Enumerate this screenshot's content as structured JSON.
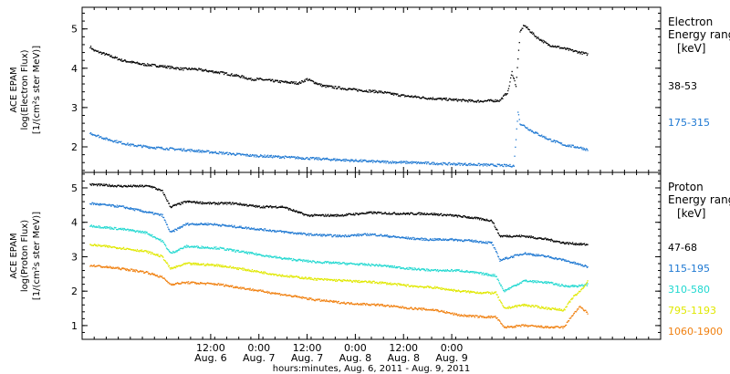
{
  "chart_data": [
    {
      "type": "scatter",
      "panel": "electron",
      "ylabel": [
        "ACE EPAM",
        "log(Electron Flux)",
        "[1/(cm²s ster MeV)]"
      ],
      "yticks": [
        "2",
        "3",
        "4",
        "5"
      ],
      "ylim": [
        1.35,
        5.55
      ],
      "legend_title": [
        "Electron",
        "Energy ranges",
        "[keV]"
      ],
      "series": [
        {
          "name": "38-53",
          "color": "#000000",
          "points": [
            [
              -18,
              4.55
            ],
            [
              -17,
              4.45
            ],
            [
              -14,
              4.35
            ],
            [
              -10,
              4.2
            ],
            [
              -5,
              4.1
            ],
            [
              0,
              4.05
            ],
            [
              5,
              3.98
            ],
            [
              8,
              3.98
            ],
            [
              10,
              3.95
            ],
            [
              15,
              3.88
            ],
            [
              20,
              3.78
            ],
            [
              22,
              3.72
            ],
            [
              24,
              3.72
            ],
            [
              30,
              3.65
            ],
            [
              34,
              3.62
            ],
            [
              36,
              3.72
            ],
            [
              40,
              3.55
            ],
            [
              48,
              3.45
            ],
            [
              54,
              3.4
            ],
            [
              60,
              3.3
            ],
            [
              66,
              3.24
            ],
            [
              72,
              3.2
            ],
            [
              78,
              3.16
            ],
            [
              84,
              3.18
            ],
            [
              86,
              3.4
            ],
            [
              87,
              3.9
            ],
            [
              88,
              3.55
            ],
            [
              89,
              4.9
            ],
            [
              90,
              5.1
            ],
            [
              93,
              4.8
            ],
            [
              96,
              4.6
            ],
            [
              100,
              4.5
            ],
            [
              104,
              4.4
            ],
            [
              106,
              4.35
            ]
          ]
        },
        {
          "name": "175-315",
          "color": "#1e78d2",
          "points": [
            [
              -18,
              2.35
            ],
            [
              -14,
              2.2
            ],
            [
              -8,
              2.05
            ],
            [
              -2,
              1.98
            ],
            [
              6,
              1.92
            ],
            [
              14,
              1.85
            ],
            [
              22,
              1.78
            ],
            [
              30,
              1.74
            ],
            [
              38,
              1.7
            ],
            [
              46,
              1.66
            ],
            [
              54,
              1.62
            ],
            [
              62,
              1.6
            ],
            [
              70,
              1.57
            ],
            [
              78,
              1.55
            ],
            [
              86,
              1.52
            ],
            [
              87.5,
              1.52
            ],
            [
              88.5,
              2.9
            ],
            [
              89,
              2.6
            ],
            [
              92,
              2.4
            ],
            [
              96,
              2.2
            ],
            [
              100,
              2.05
            ],
            [
              104,
              1.98
            ],
            [
              106,
              1.92
            ]
          ]
        }
      ]
    },
    {
      "type": "scatter",
      "panel": "proton",
      "ylabel": [
        "ACE EPAM",
        "log(Proton Flux)",
        "[1/(cm²s ster MeV)]"
      ],
      "yticks": [
        "1",
        "2",
        "3",
        "4",
        "5"
      ],
      "ylim": [
        0.6,
        5.45
      ],
      "legend_title": [
        "Proton",
        "Energy ranges",
        "[keV]"
      ],
      "series": [
        {
          "name": "47-68",
          "color": "#000000",
          "points": [
            [
              -18,
              5.1
            ],
            [
              -10,
              5.05
            ],
            [
              -3,
              5.05
            ],
            [
              0,
              4.9
            ],
            [
              2,
              4.45
            ],
            [
              6,
              4.6
            ],
            [
              12,
              4.55
            ],
            [
              18,
              4.55
            ],
            [
              24,
              4.45
            ],
            [
              30,
              4.45
            ],
            [
              36,
              4.2
            ],
            [
              44,
              4.2
            ],
            [
              52,
              4.28
            ],
            [
              60,
              4.25
            ],
            [
              66,
              4.25
            ],
            [
              72,
              4.2
            ],
            [
              76,
              4.15
            ],
            [
              82,
              4.05
            ],
            [
              84,
              3.6
            ],
            [
              90,
              3.6
            ],
            [
              96,
              3.5
            ],
            [
              100,
              3.4
            ],
            [
              106,
              3.35
            ]
          ]
        },
        {
          "name": "115-195",
          "color": "#1e78d2",
          "points": [
            [
              -18,
              4.55
            ],
            [
              -10,
              4.45
            ],
            [
              -4,
              4.3
            ],
            [
              0,
              4.2
            ],
            [
              2,
              3.7
            ],
            [
              6,
              3.95
            ],
            [
              12,
              3.95
            ],
            [
              20,
              3.85
            ],
            [
              28,
              3.75
            ],
            [
              36,
              3.65
            ],
            [
              44,
              3.6
            ],
            [
              52,
              3.65
            ],
            [
              60,
              3.55
            ],
            [
              66,
              3.5
            ],
            [
              72,
              3.5
            ],
            [
              78,
              3.45
            ],
            [
              82,
              3.4
            ],
            [
              84,
              2.9
            ],
            [
              90,
              3.1
            ],
            [
              96,
              3.0
            ],
            [
              100,
              2.9
            ],
            [
              106,
              2.7
            ]
          ]
        },
        {
          "name": "310-580",
          "color": "#20d8d0",
          "points": [
            [
              -18,
              3.9
            ],
            [
              -10,
              3.8
            ],
            [
              -4,
              3.7
            ],
            [
              0,
              3.45
            ],
            [
              2,
              3.1
            ],
            [
              6,
              3.3
            ],
            [
              14,
              3.25
            ],
            [
              22,
              3.1
            ],
            [
              30,
              2.95
            ],
            [
              38,
              2.85
            ],
            [
              46,
              2.8
            ],
            [
              54,
              2.75
            ],
            [
              62,
              2.65
            ],
            [
              68,
              2.6
            ],
            [
              74,
              2.6
            ],
            [
              80,
              2.5
            ],
            [
              83,
              2.45
            ],
            [
              85,
              2.0
            ],
            [
              90,
              2.3
            ],
            [
              96,
              2.25
            ],
            [
              100,
              2.15
            ],
            [
              104,
              2.15
            ],
            [
              106,
              2.2
            ]
          ]
        },
        {
          "name": "795-1193",
          "color": "#e0e800",
          "points": [
            [
              -18,
              3.35
            ],
            [
              -10,
              3.25
            ],
            [
              -4,
              3.15
            ],
            [
              0,
              3.0
            ],
            [
              2,
              2.65
            ],
            [
              6,
              2.8
            ],
            [
              14,
              2.75
            ],
            [
              22,
              2.6
            ],
            [
              30,
              2.45
            ],
            [
              38,
              2.35
            ],
            [
              46,
              2.3
            ],
            [
              54,
              2.25
            ],
            [
              62,
              2.15
            ],
            [
              68,
              2.1
            ],
            [
              74,
              2.0
            ],
            [
              80,
              1.95
            ],
            [
              83,
              1.95
            ],
            [
              85,
              1.5
            ],
            [
              90,
              1.6
            ],
            [
              96,
              1.5
            ],
            [
              100,
              1.45
            ],
            [
              102,
              1.8
            ],
            [
              104,
              2.0
            ],
            [
              106,
              2.3
            ]
          ]
        },
        {
          "name": "1060-1900",
          "color": "#f08010",
          "points": [
            [
              -18,
              2.75
            ],
            [
              -10,
              2.65
            ],
            [
              -4,
              2.55
            ],
            [
              0,
              2.4
            ],
            [
              2,
              2.2
            ],
            [
              6,
              2.25
            ],
            [
              14,
              2.2
            ],
            [
              22,
              2.05
            ],
            [
              30,
              1.9
            ],
            [
              38,
              1.75
            ],
            [
              46,
              1.65
            ],
            [
              54,
              1.6
            ],
            [
              62,
              1.5
            ],
            [
              68,
              1.45
            ],
            [
              74,
              1.3
            ],
            [
              80,
              1.25
            ],
            [
              83,
              1.25
            ],
            [
              85,
              0.95
            ],
            [
              90,
              1.0
            ],
            [
              96,
              0.95
            ],
            [
              100,
              0.95
            ],
            [
              102,
              1.3
            ],
            [
              104,
              1.55
            ],
            [
              106,
              1.35
            ]
          ]
        }
      ]
    }
  ],
  "x_axis": {
    "unit": "hours since Aug. 6, 2011 00:00",
    "xlim": [
      -20,
      124
    ],
    "ticks": [
      {
        "x": 12,
        "time": "12:00",
        "date": "Aug. 6"
      },
      {
        "x": 24,
        "time": "0:00",
        "date": "Aug. 7"
      },
      {
        "x": 36,
        "time": "12:00",
        "date": "Aug. 7"
      },
      {
        "x": 48,
        "time": "0:00",
        "date": "Aug. 8"
      },
      {
        "x": 60,
        "time": "12:00",
        "date": "Aug. 8"
      },
      {
        "x": 72,
        "time": "0:00",
        "date": "Aug. 9"
      }
    ],
    "label": "hours:minutes, Aug.  6, 2011 - Aug.  9, 2011"
  }
}
